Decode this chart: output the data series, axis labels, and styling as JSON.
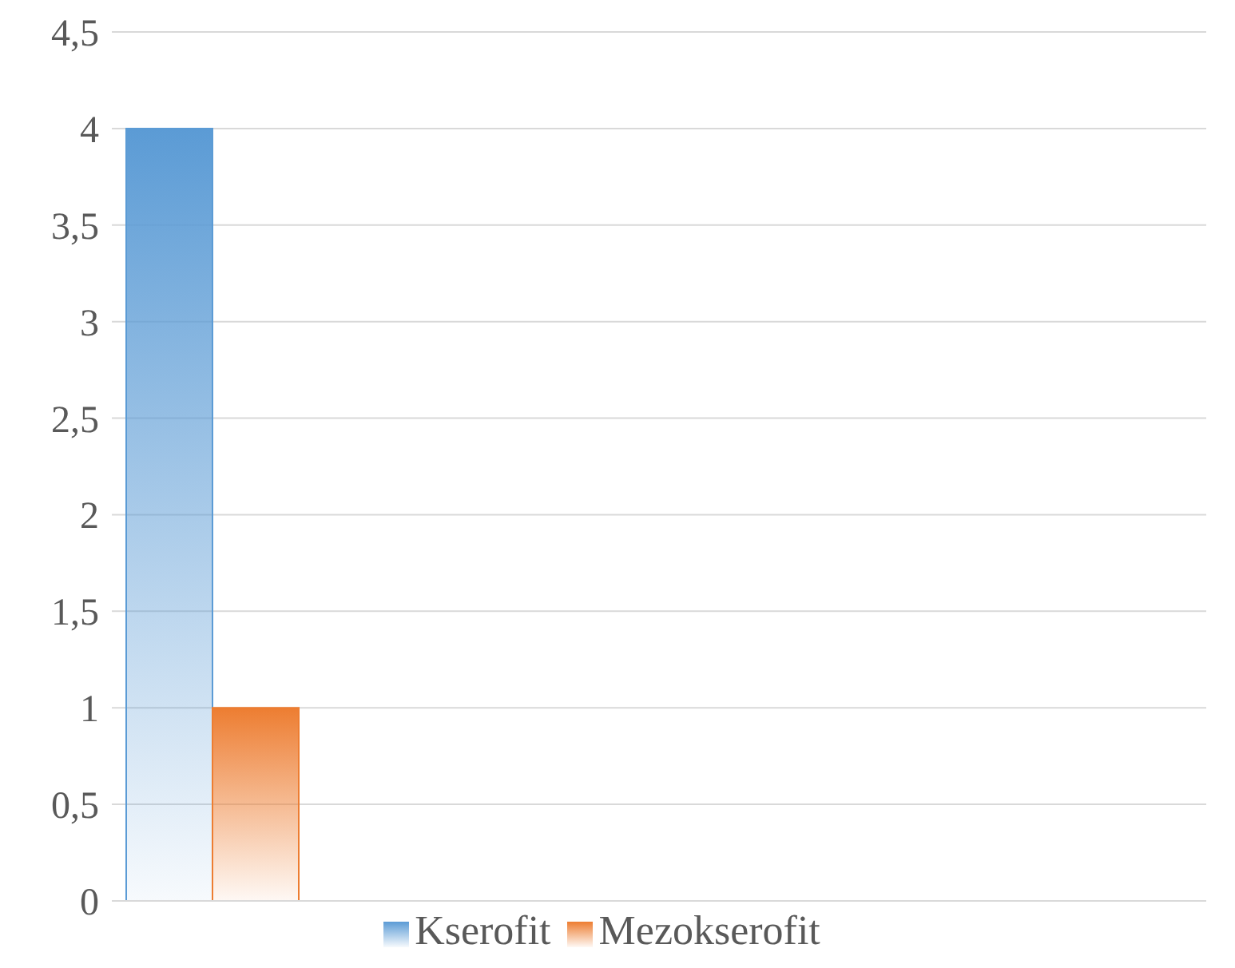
{
  "chart_data": {
    "type": "bar",
    "categories": [
      null
    ],
    "series": [
      {
        "name": "Kserofit",
        "color": "#5b9bd5",
        "values": [
          4
        ]
      },
      {
        "name": "Mezokserofit",
        "color": "#ed7d31",
        "values": [
          1
        ]
      }
    ],
    "ylim": [
      0,
      4.5
    ],
    "yticks": [
      0,
      {
        "value": 0.5,
        "label": "0,5"
      },
      1,
      {
        "value": 1.5,
        "label": "1,5"
      },
      2,
      {
        "value": 2.5,
        "label": "2,5"
      },
      3,
      {
        "value": 3.5,
        "label": "3,5"
      },
      4,
      {
        "value": 4.5,
        "label": "4,5"
      }
    ],
    "grid": "y",
    "legend": "bottom"
  }
}
